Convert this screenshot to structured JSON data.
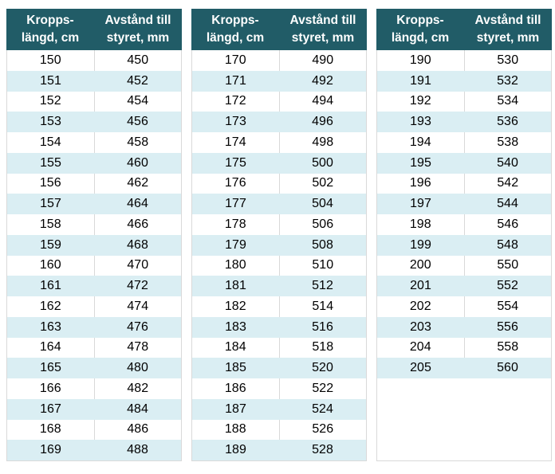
{
  "colors": {
    "header_bg": "#215C67",
    "header_text": "#FFFFFF",
    "band_blue": "#DAEEF3",
    "band_white": "#FFFFFF",
    "border": "#D9D9D9",
    "cell_text": "#000000"
  },
  "chart_data": [
    {
      "type": "table",
      "col_headers": [
        {
          "line1": "Kropps-",
          "line2": "längd, cm"
        },
        {
          "line1": "Avstånd till",
          "line2": "styret, mm"
        }
      ],
      "rows": [
        [
          150,
          450
        ],
        [
          151,
          452
        ],
        [
          152,
          454
        ],
        [
          153,
          456
        ],
        [
          154,
          458
        ],
        [
          155,
          460
        ],
        [
          156,
          462
        ],
        [
          157,
          464
        ],
        [
          158,
          466
        ],
        [
          159,
          468
        ],
        [
          160,
          470
        ],
        [
          161,
          472
        ],
        [
          162,
          474
        ],
        [
          163,
          476
        ],
        [
          164,
          478
        ],
        [
          165,
          480
        ],
        [
          166,
          482
        ],
        [
          167,
          484
        ],
        [
          168,
          486
        ],
        [
          169,
          488
        ]
      ],
      "trailing_blank": false
    },
    {
      "type": "table",
      "col_headers": [
        {
          "line1": "Kropps-",
          "line2": "längd, cm"
        },
        {
          "line1": "Avstånd till",
          "line2": "styret, mm"
        }
      ],
      "rows": [
        [
          170,
          490
        ],
        [
          171,
          492
        ],
        [
          172,
          494
        ],
        [
          173,
          496
        ],
        [
          174,
          498
        ],
        [
          175,
          500
        ],
        [
          176,
          502
        ],
        [
          177,
          504
        ],
        [
          178,
          506
        ],
        [
          179,
          508
        ],
        [
          180,
          510
        ],
        [
          181,
          512
        ],
        [
          182,
          514
        ],
        [
          183,
          516
        ],
        [
          184,
          518
        ],
        [
          185,
          520
        ],
        [
          186,
          522
        ],
        [
          187,
          524
        ],
        [
          188,
          526
        ],
        [
          189,
          528
        ]
      ],
      "trailing_blank": false
    },
    {
      "type": "table",
      "col_headers": [
        {
          "line1": "Kropps-",
          "line2": "längd, cm"
        },
        {
          "line1": "Avstånd till",
          "line2": "styret, mm"
        }
      ],
      "rows": [
        [
          190,
          530
        ],
        [
          191,
          532
        ],
        [
          192,
          534
        ],
        [
          193,
          536
        ],
        [
          194,
          538
        ],
        [
          195,
          540
        ],
        [
          196,
          542
        ],
        [
          197,
          544
        ],
        [
          198,
          546
        ],
        [
          199,
          548
        ],
        [
          200,
          550
        ],
        [
          201,
          552
        ],
        [
          202,
          554
        ],
        [
          203,
          556
        ],
        [
          204,
          558
        ],
        [
          205,
          560
        ]
      ],
      "trailing_blank": true
    }
  ]
}
